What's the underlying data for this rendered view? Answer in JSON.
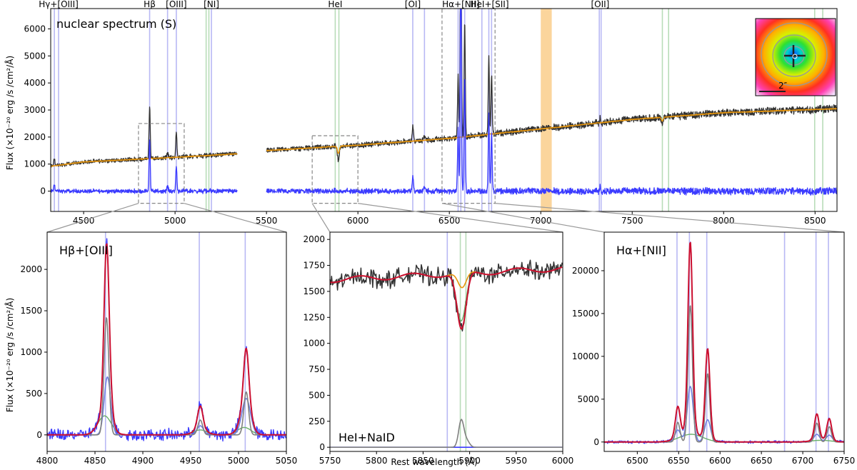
{
  "figure": {
    "shared_ylabel": "Flux (×10⁻²⁰ erg /s /cm²/Å)",
    "shared_xlabel": "Rest wavelength (Å)"
  },
  "colors": {
    "observed": "#333333",
    "residual": "#3b3bff",
    "stellar": "#e8960c",
    "total_fit": "#cc1030",
    "gaussian_narrow": "#808080",
    "gaussian_broad": "#6f7fe0",
    "naid_absorption": "#6ab06a",
    "line_marker_emission": "#b8b8f4",
    "line_marker_absorption": "#b8dcb8",
    "telluric_band": "#fbd59c",
    "zoom_box": "#888888"
  },
  "chart_data": [
    {
      "id": "top",
      "type": "line",
      "annotation": "nuclear spectrum (S)",
      "xlim": [
        4320,
        8620
      ],
      "ylim": [
        -750,
        6750
      ],
      "xticks": [
        4500,
        5000,
        5500,
        6000,
        6500,
        7000,
        7500,
        8000,
        8500
      ],
      "yticks": [
        0,
        1000,
        2000,
        3000,
        4000,
        5000,
        6000
      ],
      "gap": [
        5340,
        5500
      ],
      "line_labels": [
        {
          "label": "Hγ+[OIII]",
          "x": 4363
        },
        {
          "label": "Hβ",
          "x": 4861
        },
        {
          "label": "[OIII]",
          "x": 5007
        },
        {
          "label": "[NI]",
          "x": 5199
        },
        {
          "label": "HeI",
          "x": 5876
        },
        {
          "label": "[OI]",
          "x": 6300
        },
        {
          "label": "Hα+[NII]",
          "x": 6563
        },
        {
          "label": "HeI+[SII]",
          "x": 6720
        },
        {
          "label": "[OII]",
          "x": 7325
        }
      ],
      "emission_markers": [
        4340,
        4363,
        4861,
        4959,
        5007,
        5199,
        6300,
        6364,
        6548,
        6563,
        6584,
        6678,
        6716,
        6731,
        7320,
        7330
      ],
      "absorption_markers": [
        5170,
        5185,
        5876,
        5896,
        7665,
        7699,
        8498,
        8542
      ],
      "telluric_band": [
        7000,
        7060
      ],
      "zoom_boxes": [
        {
          "x": [
            4800,
            5050
          ],
          "y": [
            -450,
            2500
          ]
        },
        {
          "x": [
            5750,
            6000
          ],
          "y": [
            -450,
            2050
          ]
        },
        {
          "x": [
            6460,
            6750
          ],
          "y": [
            -450,
            6750
          ]
        }
      ],
      "inset_label": "2″",
      "continuum": {
        "x": [
          4320,
          4500,
          5000,
          5340,
          5500,
          6000,
          6500,
          7000,
          7500,
          8000,
          8620
        ],
        "y": [
          920,
          1080,
          1250,
          1380,
          1500,
          1700,
          1950,
          2300,
          2650,
          2900,
          3050
        ]
      },
      "emission_lines": [
        {
          "x": 4340,
          "peak": 260
        },
        {
          "x": 4861,
          "peak": 1950
        },
        {
          "x": 4959,
          "peak": 220
        },
        {
          "x": 5007,
          "peak": 900
        },
        {
          "x": 6300,
          "peak": 560
        },
        {
          "x": 6364,
          "peak": 160
        },
        {
          "x": 6548,
          "peak": 2300
        },
        {
          "x": 6563,
          "peak": 9000
        },
        {
          "x": 6584,
          "peak": 4200
        },
        {
          "x": 6716,
          "peak": 2800
        },
        {
          "x": 6731,
          "peak": 2200
        },
        {
          "x": 7325,
          "peak": 150
        }
      ],
      "absorption_lines": [
        {
          "x": 5893,
          "depth": 500
        },
        {
          "x": 7665,
          "depth": 250
        }
      ]
    },
    {
      "id": "hb",
      "type": "line",
      "annotation": "Hβ+[OIII]",
      "xlim": [
        4800,
        5050
      ],
      "ylim": [
        -200,
        2450
      ],
      "xticks": [
        4800,
        4850,
        4900,
        4950,
        5000,
        5050
      ],
      "yticks": [
        0,
        500,
        1000,
        1500,
        2000
      ],
      "markers": [
        4861,
        4959,
        5007
      ],
      "components": {
        "narrow": [
          {
            "x": 4862,
            "amp": 1420,
            "sigma": 2.5
          },
          {
            "x": 4960,
            "amp": 180,
            "sigma": 2.5
          },
          {
            "x": 5008,
            "amp": 520,
            "sigma": 2.5
          }
        ],
        "broad": [
          {
            "x": 4863,
            "amp": 700,
            "sigma": 3.4
          },
          {
            "x": 4960,
            "amp": 110,
            "sigma": 3.4
          },
          {
            "x": 5008,
            "amp": 440,
            "sigma": 4.5
          }
        ],
        "wide": [
          {
            "x": 4860,
            "amp": 230,
            "sigma": 7
          },
          {
            "x": 4960,
            "amp": 60,
            "sigma": 7
          },
          {
            "x": 5006,
            "amp": 90,
            "sigma": 7
          }
        ]
      }
    },
    {
      "id": "naid",
      "type": "line",
      "annotation": "HeI+NaID",
      "xlim": [
        5750,
        6000
      ],
      "ylim": [
        -40,
        2070
      ],
      "xticks": [
        5750,
        5800,
        5850,
        5900,
        5950,
        6000
      ],
      "yticks": [
        0,
        250,
        500,
        750,
        1000,
        1250,
        1500,
        1750,
        2000
      ],
      "markers_emission": [
        5876
      ],
      "markers_absorption": [
        5890,
        5896
      ],
      "stellar": {
        "start": 1610,
        "end": 1720,
        "dip_x": 5892,
        "dip_depth": 160,
        "dip_sigma": 4.5
      },
      "naid_absorption": {
        "x": 5891,
        "depth": 400,
        "sigma": 5
      },
      "hei_emission": {
        "x": 5891,
        "amp": 260,
        "sigma": 2.8
      }
    },
    {
      "id": "ha",
      "type": "line",
      "annotation": "Hα+[NII]",
      "xlim": [
        6460,
        6750
      ],
      "ylim": [
        -1100,
        24500
      ],
      "xticks": [
        6500,
        6550,
        6600,
        6650,
        6700,
        6750
      ],
      "yticks": [
        0,
        5000,
        10000,
        15000,
        20000
      ],
      "markers": [
        6548,
        6563,
        6584,
        6678,
        6716,
        6731
      ],
      "components": {
        "narrow": [
          {
            "x": 6549,
            "amp": 2300,
            "sigma": 2.6
          },
          {
            "x": 6564,
            "amp": 16000,
            "sigma": 2.6
          },
          {
            "x": 6585,
            "amp": 8000,
            "sigma": 2.6
          },
          {
            "x": 6717,
            "amp": 2200,
            "sigma": 2.6
          },
          {
            "x": 6732,
            "amp": 1800,
            "sigma": 2.6
          }
        ],
        "broad": [
          {
            "x": 6549,
            "amp": 1400,
            "sigma": 3.6
          },
          {
            "x": 6564,
            "amp": 6500,
            "sigma": 3.6
          },
          {
            "x": 6585,
            "amp": 2600,
            "sigma": 3.6
          },
          {
            "x": 6717,
            "amp": 900,
            "sigma": 3.6
          },
          {
            "x": 6732,
            "amp": 800,
            "sigma": 3.6
          }
        ],
        "wide": [
          {
            "x": 6565,
            "amp": 900,
            "sigma": 14
          },
          {
            "x": 6722,
            "amp": 200,
            "sigma": 12
          }
        ]
      }
    }
  ]
}
